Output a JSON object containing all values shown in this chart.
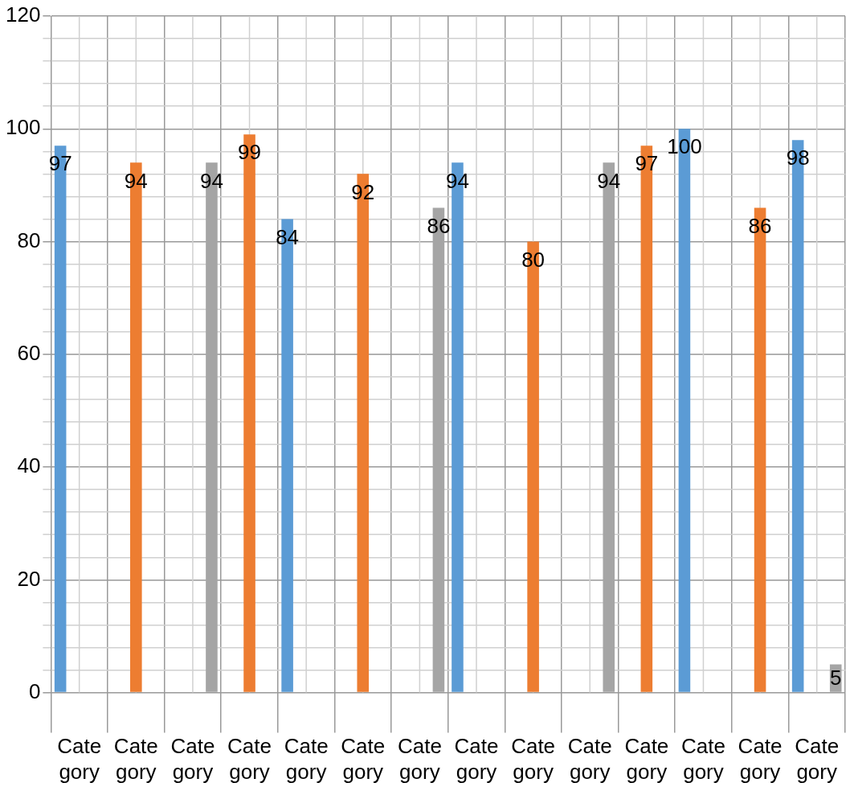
{
  "chart_data": {
    "type": "bar",
    "categories": [
      "Category",
      "Category",
      "Category",
      "Category",
      "Category",
      "Category",
      "Category",
      "Category",
      "Category",
      "Category",
      "Category",
      "Category",
      "Category",
      "Category"
    ],
    "series": [
      {
        "color": "#5b9bd5",
        "values": [
          97,
          null,
          null,
          null,
          84,
          null,
          null,
          94,
          null,
          null,
          null,
          100,
          null,
          98
        ]
      },
      {
        "color": "#ed7d31",
        "values": [
          null,
          94,
          null,
          99,
          null,
          92,
          null,
          null,
          80,
          null,
          97,
          null,
          86,
          null
        ]
      },
      {
        "color": "#a5a5a5",
        "values": [
          null,
          null,
          94,
          null,
          null,
          null,
          86,
          null,
          null,
          94,
          null,
          null,
          null,
          5
        ]
      }
    ],
    "ylim": [
      0,
      120
    ],
    "yticks": [
      0,
      {
        "value": 4,
        "label": null
      },
      {
        "value": 8,
        "label": null
      },
      {
        "value": 12,
        "label": null
      },
      {
        "value": 16,
        "label": null
      },
      20,
      {
        "value": 24,
        "label": null
      },
      {
        "value": 28,
        "label": null
      },
      {
        "value": 32,
        "label": null
      },
      {
        "value": 36,
        "label": null
      },
      40,
      {
        "value": 44,
        "label": null
      },
      {
        "value": 48,
        "label": null
      },
      {
        "value": 52,
        "label": null
      },
      {
        "value": 56,
        "label": null
      },
      60,
      {
        "value": 64,
        "label": null
      },
      {
        "value": 68,
        "label": null
      },
      {
        "value": 72,
        "label": null
      },
      {
        "value": 76,
        "label": null
      },
      80,
      {
        "value": 84,
        "label": null
      },
      {
        "value": 88,
        "label": null
      },
      {
        "value": 92,
        "label": null
      },
      {
        "value": 96,
        "label": null
      },
      100,
      {
        "value": 104,
        "label": null
      },
      {
        "value": 108,
        "label": null
      },
      {
        "value": 112,
        "label": null
      },
      {
        "value": 116,
        "label": null
      },
      120
    ],
    "grid": true,
    "legend": false,
    "data_labels": true
  }
}
